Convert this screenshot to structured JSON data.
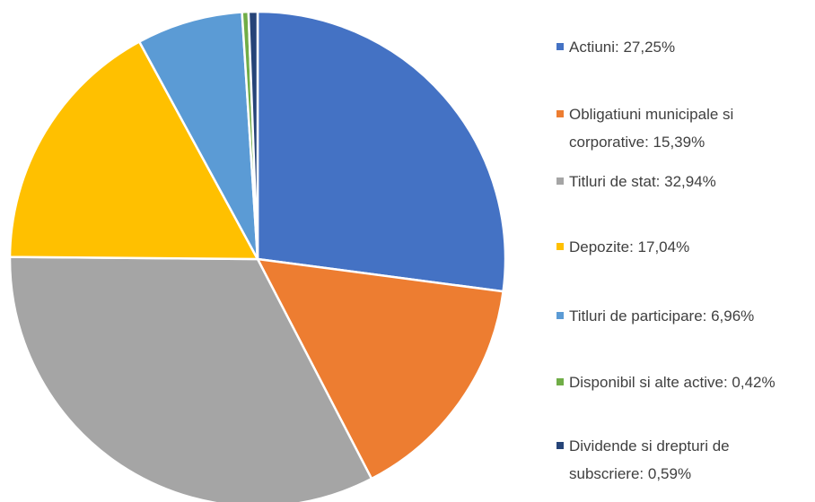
{
  "chart_data": {
    "type": "pie",
    "categories": [
      "Actiuni: 27,25%",
      "Obligatiuni municipale si corporative: 15,39%",
      "Titluri de stat: 32,94%",
      "Depozite: 17,04%",
      "Titluri de participare: 6,96%",
      "Disponibil si alte active: 0,42%",
      "Dividende si drepturi de subscriere: 0,59%"
    ],
    "values": [
      27.25,
      15.39,
      32.94,
      17.04,
      6.96,
      0.42,
      0.59
    ],
    "colors": [
      "#4472c4",
      "#ed7d31",
      "#a5a5a5",
      "#ffc000",
      "#5b9bd5",
      "#70ad47",
      "#264478"
    ],
    "legend": "right"
  }
}
